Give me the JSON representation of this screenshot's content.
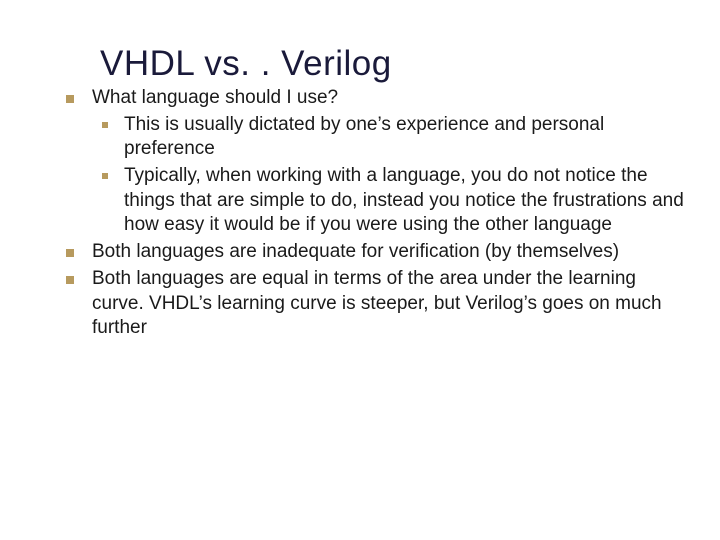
{
  "title": "VHDL vs. . Verilog",
  "colors": {
    "title_color": "#1a1a3a",
    "text_color": "#1a1a1a",
    "bullet_color": "#b79a5e",
    "background": "#ffffff"
  },
  "fonts": {
    "title_size": 35,
    "body_size": 19,
    "family": "Verdana, Tahoma, sans-serif"
  },
  "items": [
    {
      "level": 1,
      "text": "What language should I use?"
    },
    {
      "level": 2,
      "text": "This is usually dictated by one’s experience and personal preference"
    },
    {
      "level": 2,
      "text": "Typically, when working with a language, you do not notice the things that are simple to do, instead you notice the frustrations and how easy it would be if you were using the other language"
    },
    {
      "level": 1,
      "text": "Both languages are inadequate for verification (by themselves)"
    },
    {
      "level": 1,
      "text": "Both languages are equal in terms of the area under the learning curve.  VHDL’s learning curve is steeper, but Verilog’s goes on much further"
    }
  ]
}
